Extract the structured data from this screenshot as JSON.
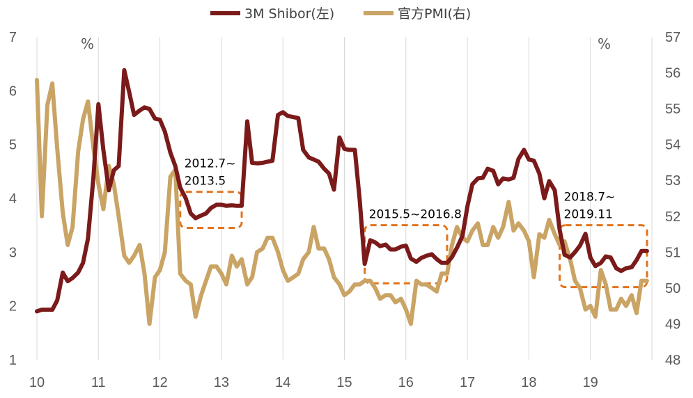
{
  "chart_data": {
    "type": "line",
    "legend": {
      "placement": "top-center"
    },
    "colors": {
      "shibor": "#7b1a1a",
      "pmi": "#c9a465",
      "box": "#e3731c",
      "grid": "#d9d9d9"
    },
    "x_ticks": [
      "10",
      "11",
      "12",
      "13",
      "14",
      "15",
      "16",
      "17",
      "18",
      "19"
    ],
    "x_range": [
      2010.0,
      2020.0
    ],
    "y_left": {
      "label": "%",
      "ticks": [
        "1",
        "2",
        "3",
        "4",
        "5",
        "6",
        "7"
      ],
      "range": [
        1,
        7
      ]
    },
    "y_right": {
      "label": "%",
      "ticks": [
        "48",
        "49",
        "50",
        "51",
        "52",
        "53",
        "54",
        "55",
        "56",
        "57"
      ],
      "range": [
        48,
        57
      ]
    },
    "grid": "vertical",
    "series": [
      {
        "name": "3M Shibor(左)",
        "axis": "left",
        "points": [
          [
            2010.0,
            1.9
          ],
          [
            2010.08,
            1.93
          ],
          [
            2010.17,
            1.93
          ],
          [
            2010.25,
            1.93
          ],
          [
            2010.33,
            2.1
          ],
          [
            2010.42,
            2.62
          ],
          [
            2010.5,
            2.46
          ],
          [
            2010.58,
            2.52
          ],
          [
            2010.67,
            2.62
          ],
          [
            2010.75,
            2.8
          ],
          [
            2010.83,
            3.25
          ],
          [
            2010.92,
            4.4
          ],
          [
            2011.0,
            5.75
          ],
          [
            2011.08,
            4.9
          ],
          [
            2011.17,
            4.15
          ],
          [
            2011.25,
            4.52
          ],
          [
            2011.33,
            4.6
          ],
          [
            2011.42,
            6.38
          ],
          [
            2011.5,
            5.98
          ],
          [
            2011.58,
            5.55
          ],
          [
            2011.67,
            5.63
          ],
          [
            2011.75,
            5.69
          ],
          [
            2011.83,
            5.66
          ],
          [
            2011.92,
            5.48
          ],
          [
            2012.0,
            5.46
          ],
          [
            2012.08,
            5.24
          ],
          [
            2012.17,
            4.85
          ],
          [
            2012.25,
            4.6
          ],
          [
            2012.33,
            4.2
          ],
          [
            2012.42,
            4.0
          ],
          [
            2012.5,
            3.72
          ],
          [
            2012.58,
            3.63
          ],
          [
            2012.67,
            3.68
          ],
          [
            2012.75,
            3.72
          ],
          [
            2012.83,
            3.82
          ],
          [
            2012.92,
            3.88
          ],
          [
            2013.0,
            3.88
          ],
          [
            2013.08,
            3.86
          ],
          [
            2013.17,
            3.87
          ],
          [
            2013.25,
            3.86
          ],
          [
            2013.33,
            3.86
          ],
          [
            2013.42,
            5.43
          ],
          [
            2013.5,
            4.66
          ],
          [
            2013.58,
            4.65
          ],
          [
            2013.67,
            4.66
          ],
          [
            2013.75,
            4.68
          ],
          [
            2013.83,
            4.7
          ],
          [
            2013.92,
            5.55
          ],
          [
            2014.0,
            5.6
          ],
          [
            2014.08,
            5.53
          ],
          [
            2014.17,
            5.51
          ],
          [
            2014.25,
            5.49
          ],
          [
            2014.33,
            4.9
          ],
          [
            2014.42,
            4.76
          ],
          [
            2014.5,
            4.72
          ],
          [
            2014.58,
            4.68
          ],
          [
            2014.67,
            4.55
          ],
          [
            2014.75,
            4.46
          ],
          [
            2014.83,
            4.16
          ],
          [
            2014.92,
            5.13
          ],
          [
            2015.0,
            4.92
          ],
          [
            2015.08,
            4.9
          ],
          [
            2015.17,
            4.9
          ],
          [
            2015.25,
            3.95
          ],
          [
            2015.33,
            2.78
          ],
          [
            2015.42,
            3.22
          ],
          [
            2015.5,
            3.18
          ],
          [
            2015.58,
            3.11
          ],
          [
            2015.67,
            3.14
          ],
          [
            2015.75,
            3.05
          ],
          [
            2015.83,
            3.05
          ],
          [
            2015.92,
            3.1
          ],
          [
            2016.0,
            3.12
          ],
          [
            2016.08,
            2.88
          ],
          [
            2016.17,
            2.82
          ],
          [
            2016.25,
            2.89
          ],
          [
            2016.33,
            2.93
          ],
          [
            2016.42,
            2.96
          ],
          [
            2016.5,
            2.87
          ],
          [
            2016.58,
            2.8
          ],
          [
            2016.67,
            2.8
          ],
          [
            2016.75,
            2.91
          ],
          [
            2016.83,
            3.08
          ],
          [
            2016.92,
            3.3
          ],
          [
            2017.0,
            3.85
          ],
          [
            2017.08,
            4.26
          ],
          [
            2017.17,
            4.37
          ],
          [
            2017.25,
            4.38
          ],
          [
            2017.33,
            4.55
          ],
          [
            2017.42,
            4.51
          ],
          [
            2017.5,
            4.26
          ],
          [
            2017.58,
            4.37
          ],
          [
            2017.67,
            4.35
          ],
          [
            2017.75,
            4.38
          ],
          [
            2017.83,
            4.73
          ],
          [
            2017.92,
            4.9
          ],
          [
            2018.0,
            4.72
          ],
          [
            2018.08,
            4.7
          ],
          [
            2018.17,
            4.46
          ],
          [
            2018.25,
            4.0
          ],
          [
            2018.33,
            4.32
          ],
          [
            2018.42,
            4.15
          ],
          [
            2018.5,
            3.42
          ],
          [
            2018.58,
            2.95
          ],
          [
            2018.67,
            2.9
          ],
          [
            2018.75,
            3.0
          ],
          [
            2018.83,
            3.12
          ],
          [
            2018.92,
            3.34
          ],
          [
            2019.0,
            2.9
          ],
          [
            2019.08,
            2.74
          ],
          [
            2019.17,
            2.8
          ],
          [
            2019.25,
            2.92
          ],
          [
            2019.33,
            2.9
          ],
          [
            2019.42,
            2.7
          ],
          [
            2019.5,
            2.65
          ],
          [
            2019.58,
            2.7
          ],
          [
            2019.67,
            2.72
          ],
          [
            2019.75,
            2.85
          ],
          [
            2019.83,
            3.02
          ],
          [
            2019.92,
            3.02
          ]
        ]
      },
      {
        "name": "官方PMI(右)",
        "axis": "right",
        "points": [
          [
            2010.0,
            55.8
          ],
          [
            2010.08,
            52.0
          ],
          [
            2010.17,
            55.1
          ],
          [
            2010.25,
            55.7
          ],
          [
            2010.33,
            53.9
          ],
          [
            2010.42,
            52.1
          ],
          [
            2010.5,
            51.2
          ],
          [
            2010.58,
            51.7
          ],
          [
            2010.67,
            53.8
          ],
          [
            2010.75,
            54.7
          ],
          [
            2010.83,
            55.2
          ],
          [
            2010.92,
            53.9
          ],
          [
            2011.0,
            52.9
          ],
          [
            2011.08,
            52.2
          ],
          [
            2011.17,
            53.4
          ],
          [
            2011.25,
            52.9
          ],
          [
            2011.33,
            52.0
          ],
          [
            2011.42,
            50.9
          ],
          [
            2011.5,
            50.7
          ],
          [
            2011.58,
            50.9
          ],
          [
            2011.67,
            51.2
          ],
          [
            2011.75,
            50.4
          ],
          [
            2011.83,
            49.0
          ],
          [
            2011.92,
            50.3
          ],
          [
            2012.0,
            50.5
          ],
          [
            2012.08,
            51.0
          ],
          [
            2012.17,
            53.1
          ],
          [
            2012.25,
            53.3
          ],
          [
            2012.33,
            50.4
          ],
          [
            2012.42,
            50.2
          ],
          [
            2012.5,
            50.1
          ],
          [
            2012.58,
            49.2
          ],
          [
            2012.67,
            49.8
          ],
          [
            2012.75,
            50.2
          ],
          [
            2012.83,
            50.6
          ],
          [
            2012.92,
            50.6
          ],
          [
            2013.0,
            50.4
          ],
          [
            2013.08,
            50.1
          ],
          [
            2013.17,
            50.9
          ],
          [
            2013.25,
            50.6
          ],
          [
            2013.33,
            50.8
          ],
          [
            2013.42,
            50.1
          ],
          [
            2013.5,
            50.3
          ],
          [
            2013.58,
            51.0
          ],
          [
            2013.67,
            51.1
          ],
          [
            2013.75,
            51.4
          ],
          [
            2013.83,
            51.4
          ],
          [
            2013.92,
            51.0
          ],
          [
            2014.0,
            50.5
          ],
          [
            2014.08,
            50.2
          ],
          [
            2014.17,
            50.3
          ],
          [
            2014.25,
            50.4
          ],
          [
            2014.33,
            50.8
          ],
          [
            2014.42,
            51.0
          ],
          [
            2014.5,
            51.7
          ],
          [
            2014.58,
            51.1
          ],
          [
            2014.67,
            51.1
          ],
          [
            2014.75,
            50.8
          ],
          [
            2014.83,
            50.3
          ],
          [
            2014.92,
            50.1
          ],
          [
            2015.0,
            49.8
          ],
          [
            2015.08,
            49.9
          ],
          [
            2015.17,
            50.1
          ],
          [
            2015.25,
            50.1
          ],
          [
            2015.33,
            50.2
          ],
          [
            2015.42,
            50.2
          ],
          [
            2015.5,
            50.0
          ],
          [
            2015.58,
            49.7
          ],
          [
            2015.67,
            49.8
          ],
          [
            2015.75,
            49.8
          ],
          [
            2015.83,
            49.6
          ],
          [
            2015.92,
            49.7
          ],
          [
            2016.0,
            49.4
          ],
          [
            2016.08,
            49.0
          ],
          [
            2016.17,
            50.2
          ],
          [
            2016.25,
            50.1
          ],
          [
            2016.33,
            50.1
          ],
          [
            2016.42,
            50.0
          ],
          [
            2016.5,
            49.9
          ],
          [
            2016.58,
            50.4
          ],
          [
            2016.67,
            50.4
          ],
          [
            2016.75,
            51.2
          ],
          [
            2016.83,
            51.7
          ],
          [
            2016.92,
            51.4
          ],
          [
            2017.0,
            51.3
          ],
          [
            2017.08,
            51.6
          ],
          [
            2017.17,
            51.8
          ],
          [
            2017.25,
            51.2
          ],
          [
            2017.33,
            51.2
          ],
          [
            2017.42,
            51.7
          ],
          [
            2017.5,
            51.4
          ],
          [
            2017.58,
            51.7
          ],
          [
            2017.67,
            52.4
          ],
          [
            2017.75,
            51.6
          ],
          [
            2017.83,
            51.8
          ],
          [
            2017.92,
            51.6
          ],
          [
            2018.0,
            51.3
          ],
          [
            2018.08,
            50.3
          ],
          [
            2018.17,
            51.5
          ],
          [
            2018.25,
            51.4
          ],
          [
            2018.33,
            51.9
          ],
          [
            2018.42,
            51.5
          ],
          [
            2018.5,
            51.2
          ],
          [
            2018.58,
            51.3
          ],
          [
            2018.67,
            50.8
          ],
          [
            2018.75,
            50.2
          ],
          [
            2018.83,
            50.0
          ],
          [
            2018.92,
            49.4
          ],
          [
            2019.0,
            49.5
          ],
          [
            2019.08,
            49.2
          ],
          [
            2019.17,
            50.5
          ],
          [
            2019.25,
            50.1
          ],
          [
            2019.33,
            49.4
          ],
          [
            2019.42,
            49.4
          ],
          [
            2019.5,
            49.7
          ],
          [
            2019.58,
            49.5
          ],
          [
            2019.67,
            49.8
          ],
          [
            2019.75,
            49.3
          ],
          [
            2019.83,
            50.2
          ],
          [
            2019.92,
            50.2
          ]
        ]
      }
    ],
    "annotations": [
      {
        "lines": [
          "2012.7~",
          "2013.5"
        ],
        "x_range": [
          2012.33,
          2013.33
        ],
        "y_range": [
          3.45,
          4.12
        ]
      },
      {
        "lines": [
          "2015.5~2016.8"
        ],
        "x_range": [
          2015.33,
          2016.67
        ],
        "y_range": [
          2.42,
          3.5
        ]
      },
      {
        "lines": [
          "2018.7~",
          "2019.11"
        ],
        "x_range": [
          2018.5,
          2019.92
        ],
        "y_range": [
          2.35,
          3.5
        ]
      }
    ]
  }
}
